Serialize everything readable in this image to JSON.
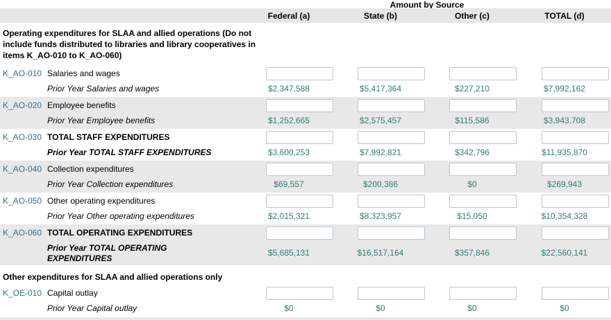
{
  "colors": {
    "link_blue": "#31709c",
    "value_teal": "#317d74",
    "row_shade": "#e8e8e8",
    "header_bar": "#e6e6e6"
  },
  "header": {
    "caption": "Amount by Source",
    "columns": [
      "Federal (a)",
      "State (b)",
      "Other (c)",
      "TOTAL (d)"
    ]
  },
  "sections": [
    {
      "title": "Operating expenditures for SLAA and allied operations (Do not include funds distributed to libraries and library cooperatives in items K_AO-010 to K_AO-060)",
      "rows": [
        {
          "id": "K_AO-010",
          "label": "Salaries and wages",
          "prior": {
            "label": "Prior Year Salaries and wages",
            "values": [
              "$2,347,588",
              "$5,417,364",
              "$227,210",
              "$7,992,162"
            ]
          }
        },
        {
          "id": "K_AO-020",
          "label": "Employee benefits",
          "prior": {
            "label": "Prior Year Employee benefits",
            "values": [
              "$1,252,665",
              "$2,575,457",
              "$115,586",
              "$3,943,708"
            ]
          }
        },
        {
          "id": "K_AO-030",
          "label": "TOTAL STAFF EXPENDITURES",
          "prior": {
            "label": "Prior Year TOTAL STAFF EXPENDITURES",
            "values": [
              "$3,600,253",
              "$7,992,821",
              "$342,796",
              "$11,935,870"
            ]
          }
        },
        {
          "id": "K_AO-040",
          "label": "Collection expenditures",
          "prior": {
            "label": "Prior Year Collection expenditures",
            "values": [
              "$69,557",
              "$200,386",
              "$0",
              "$269,943"
            ]
          }
        },
        {
          "id": "K_AO-050",
          "label": "Other operating expenditures",
          "prior": {
            "label": "Prior Year Other operating expenditures",
            "values": [
              "$2,015,321",
              "$8,323,957",
              "$15,050",
              "$10,354,328"
            ]
          }
        },
        {
          "id": "K_AO-060",
          "label": "TOTAL OPERATING EXPENDITURES",
          "prior": {
            "label": "Prior Year TOTAL OPERATING EXPENDITURES",
            "values": [
              "$5,685,131",
              "$16,517,164",
              "$357,846",
              "$22,560,141"
            ]
          }
        }
      ]
    },
    {
      "title": "Other expenditures for SLAA and allied operations only",
      "rows": [
        {
          "id": "K_OE-010",
          "label": "Capital outlay",
          "prior": {
            "label": "Prior Year Capital outlay",
            "values": [
              "$0",
              "$0",
              "$0",
              "$0"
            ]
          }
        }
      ]
    }
  ]
}
